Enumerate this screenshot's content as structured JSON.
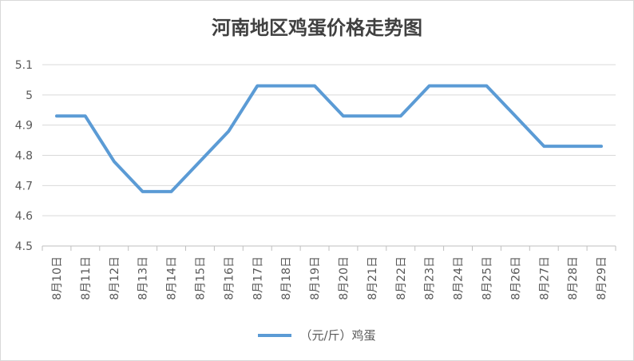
{
  "chart_data": {
    "type": "line",
    "title": "河南地区鸡蛋价格走势图",
    "xlabel": "",
    "ylabel": "",
    "categories": [
      "8月10日",
      "8月11日",
      "8月12日",
      "8月13日",
      "8月14日",
      "8月15日",
      "8月16日",
      "8月17日",
      "8月18日",
      "8月19日",
      "8月20日",
      "8月21日",
      "8月22日",
      "8月23日",
      "8月24日",
      "8月25日",
      "8月26日",
      "8月27日",
      "8月28日",
      "8月29日"
    ],
    "series": [
      {
        "name": "（元/斤）鸡蛋",
        "values": [
          4.93,
          4.93,
          4.78,
          4.68,
          4.68,
          4.78,
          4.88,
          5.03,
          5.03,
          5.03,
          4.93,
          4.93,
          4.93,
          5.03,
          5.03,
          5.03,
          4.93,
          4.83,
          4.83,
          4.83
        ]
      }
    ],
    "ylim": [
      4.5,
      5.1
    ],
    "yticks": [
      "4.5",
      "4.6",
      "4.7",
      "4.8",
      "4.9",
      "5",
      "5.1"
    ],
    "grid": true,
    "legend_position": "bottom",
    "line_color": "#5b9bd5"
  }
}
